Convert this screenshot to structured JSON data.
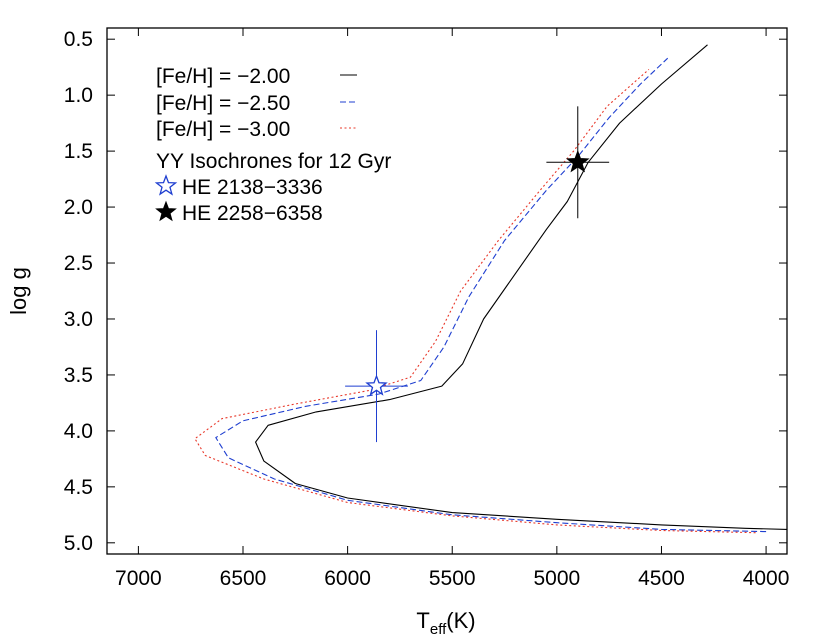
{
  "chart_data": {
    "type": "line",
    "xlabel": "T",
    "xlabel_sub": "eff",
    "xlabel_unit": "(K)",
    "ylabel": "log g",
    "xlim": [
      7150,
      3900
    ],
    "ylim": [
      5.1,
      0.4
    ],
    "x_ticks": [
      7000,
      6500,
      6000,
      5500,
      5000,
      4500,
      4000
    ],
    "y_ticks": [
      0.5,
      1.0,
      1.5,
      2.0,
      2.5,
      3.0,
      3.5,
      4.0,
      4.5,
      5.0
    ],
    "x_tick_labels": [
      "7000",
      "6500",
      "6000",
      "5500",
      "5000",
      "4500",
      "4000"
    ],
    "y_tick_labels": [
      "0.5",
      "1.0",
      "1.5",
      "2.0",
      "2.5",
      "3.0",
      "3.5",
      "4.0",
      "4.5",
      "5.0"
    ],
    "legend_position": "top-left",
    "legend_note": "YY Isochrones for 12 Gyr",
    "series": [
      {
        "name": "[Fe/H] = −2.00",
        "style": "solid",
        "color": "#000000",
        "points": [
          [
            3900,
            4.88
          ],
          [
            4100,
            4.87
          ],
          [
            4500,
            4.84
          ],
          [
            5000,
            4.79
          ],
          [
            5500,
            4.73
          ],
          [
            6000,
            4.6
          ],
          [
            6250,
            4.47
          ],
          [
            6400,
            4.27
          ],
          [
            6440,
            4.1
          ],
          [
            6380,
            3.95
          ],
          [
            6150,
            3.83
          ],
          [
            5800,
            3.72
          ],
          [
            5550,
            3.6
          ],
          [
            5450,
            3.4
          ],
          [
            5350,
            3.0
          ],
          [
            5200,
            2.6
          ],
          [
            5050,
            2.2
          ],
          [
            4950,
            1.95
          ],
          [
            4850,
            1.6
          ],
          [
            4700,
            1.25
          ],
          [
            4500,
            0.9
          ],
          [
            4280,
            0.55
          ]
        ]
      },
      {
        "name": "[Fe/H] = −2.50",
        "style": "dashed",
        "color": "#1f3fd0",
        "points": [
          [
            4000,
            4.9
          ],
          [
            4500,
            4.88
          ],
          [
            5000,
            4.82
          ],
          [
            5500,
            4.75
          ],
          [
            6000,
            4.62
          ],
          [
            6350,
            4.43
          ],
          [
            6570,
            4.24
          ],
          [
            6630,
            4.06
          ],
          [
            6500,
            3.91
          ],
          [
            6200,
            3.78
          ],
          [
            5850,
            3.67
          ],
          [
            5650,
            3.55
          ],
          [
            5540,
            3.25
          ],
          [
            5420,
            2.8
          ],
          [
            5250,
            2.3
          ],
          [
            5050,
            1.85
          ],
          [
            4900,
            1.55
          ],
          [
            4750,
            1.2
          ],
          [
            4600,
            0.9
          ],
          [
            4470,
            0.67
          ]
        ]
      },
      {
        "name": "[Fe/H] = −3.00",
        "style": "dotted",
        "color": "#e8382a",
        "points": [
          [
            4050,
            4.91
          ],
          [
            4500,
            4.89
          ],
          [
            5000,
            4.84
          ],
          [
            5500,
            4.76
          ],
          [
            6000,
            4.64
          ],
          [
            6400,
            4.43
          ],
          [
            6680,
            4.22
          ],
          [
            6730,
            4.07
          ],
          [
            6600,
            3.89
          ],
          [
            6250,
            3.76
          ],
          [
            5900,
            3.64
          ],
          [
            5700,
            3.52
          ],
          [
            5580,
            3.2
          ],
          [
            5460,
            2.75
          ],
          [
            5280,
            2.3
          ],
          [
            5080,
            1.85
          ],
          [
            4920,
            1.5
          ],
          [
            4760,
            1.1
          ],
          [
            4560,
            0.77
          ]
        ]
      }
    ],
    "stars": [
      {
        "name": "HE 2138−3336",
        "teff": 5862,
        "logg": 3.6,
        "teff_err": 150,
        "logg_err": 0.5,
        "marker": "open-star",
        "color": "#1f3fd0"
      },
      {
        "name": "HE 2258−6358",
        "teff": 4900,
        "logg": 1.6,
        "teff_err": 150,
        "logg_err": 0.5,
        "marker": "filled-star",
        "color": "#000000"
      }
    ]
  }
}
